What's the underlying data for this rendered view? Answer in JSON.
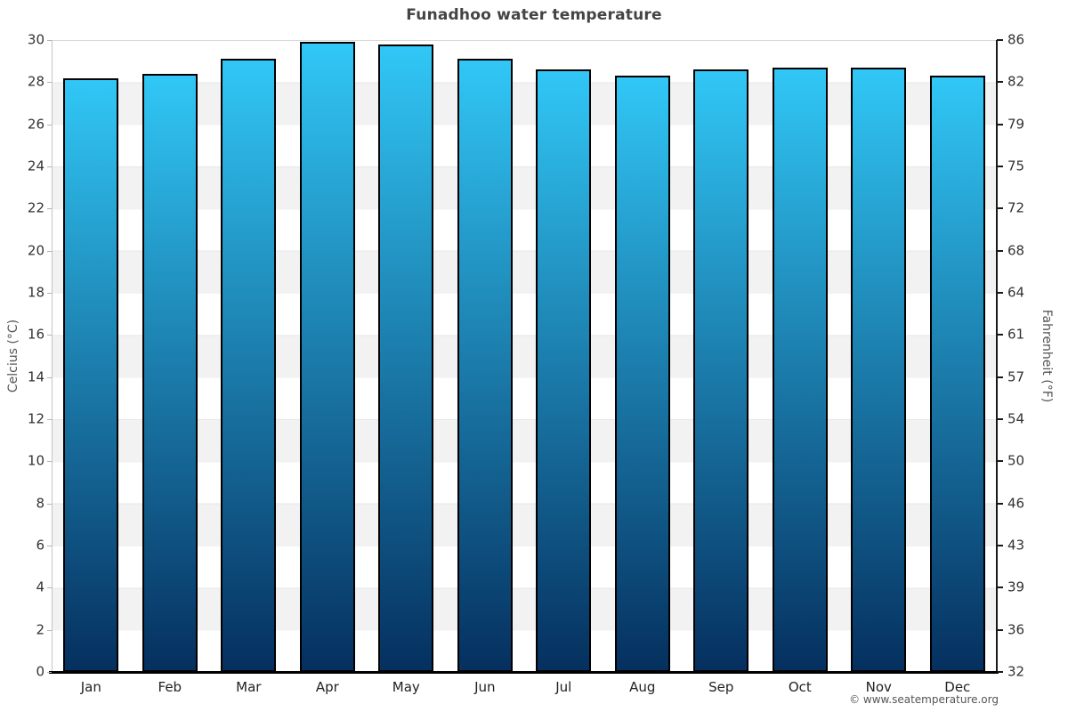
{
  "title": "Funadhoo water temperature",
  "watermark": "© www.seatemperature.org",
  "chart_data": {
    "type": "bar",
    "title": "Funadhoo water temperature",
    "xlabel": "",
    "ylabel_left": "Celcius (°C)",
    "ylabel_right": "Fahrenheit (°F)",
    "categories": [
      "Jan",
      "Feb",
      "Mar",
      "Apr",
      "May",
      "Jun",
      "Jul",
      "Aug",
      "Sep",
      "Oct",
      "Nov",
      "Dec"
    ],
    "values": [
      28.2,
      28.4,
      29.1,
      29.9,
      29.8,
      29.1,
      28.6,
      28.3,
      28.6,
      28.7,
      28.7,
      28.3
    ],
    "unit": "°C",
    "ylim": [
      0,
      30
    ],
    "ytick_step": 2,
    "yticks_left": [
      30,
      28,
      26,
      24,
      22,
      20,
      18,
      16,
      14,
      12,
      10,
      8,
      6,
      4,
      2,
      0
    ],
    "yticks_right": [
      86,
      82,
      79,
      75,
      72,
      68,
      64,
      61,
      57,
      54,
      50,
      46,
      43,
      39,
      36,
      32
    ],
    "grid": "alternating horizontal bands every 2°C",
    "legend": "none",
    "colors": {
      "bar_gradient_top": "#31c7f6",
      "bar_gradient_bottom": "#05305f",
      "bar_border": "#000000",
      "band_light": "#ffffff",
      "band_dark": "#f2f2f2",
      "baseline": "#000000",
      "right_axis": "#1a1a1a",
      "left_axis": "#c4c4c4",
      "top_border": "#d9d9d9",
      "title_text": "#444444",
      "tick_text": "#333333",
      "axis_title_text": "#555555"
    }
  }
}
